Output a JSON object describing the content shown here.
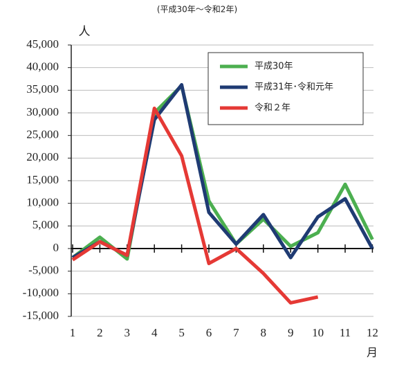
{
  "chart_data": {
    "type": "line",
    "title": "(平成30年～令和2年)",
    "y_label": "人",
    "x_label": "月",
    "categories": [
      "1",
      "2",
      "3",
      "4",
      "5",
      "6",
      "7",
      "8",
      "9",
      "10",
      "11",
      "12"
    ],
    "series": [
      {
        "name": "平成30年",
        "color": "#4caf50",
        "values": [
          -2000,
          2500,
          -2300,
          30000,
          36000,
          10500,
          1000,
          6500,
          500,
          3500,
          14200,
          2000
        ]
      },
      {
        "name": "平成31年･令和元年",
        "color": "#1f3b73",
        "values": [
          -2000,
          1500,
          -1500,
          28500,
          36200,
          8000,
          1000,
          7500,
          -2000,
          7000,
          11000,
          0
        ]
      },
      {
        "name": "令和２年",
        "color": "#e53935",
        "values": [
          -2500,
          1500,
          -1500,
          31000,
          20500,
          -3300,
          0,
          -5500,
          -12000,
          -10700,
          null,
          null
        ]
      }
    ],
    "ylim": [
      -15000,
      45000
    ],
    "yticks": [
      {
        "value": -15000,
        "label": "-15,000"
      },
      {
        "value": -10000,
        "label": "-10,000"
      },
      {
        "value": -5000,
        "label": "-5,000"
      },
      0,
      {
        "value": 5000,
        "label": "5,000"
      },
      {
        "value": 10000,
        "label": "10,000"
      },
      {
        "value": 15000,
        "label": "15,000"
      },
      {
        "value": 20000,
        "label": "20,000"
      },
      {
        "value": 25000,
        "label": "25,000"
      },
      {
        "value": 30000,
        "label": "30,000"
      },
      {
        "value": 35000,
        "label": "35,000"
      },
      {
        "value": 40000,
        "label": "40,000"
      },
      {
        "value": 45000,
        "label": "45,000"
      }
    ],
    "negative_tick_color": "#e53935",
    "grid": true,
    "legend": "upper right"
  }
}
